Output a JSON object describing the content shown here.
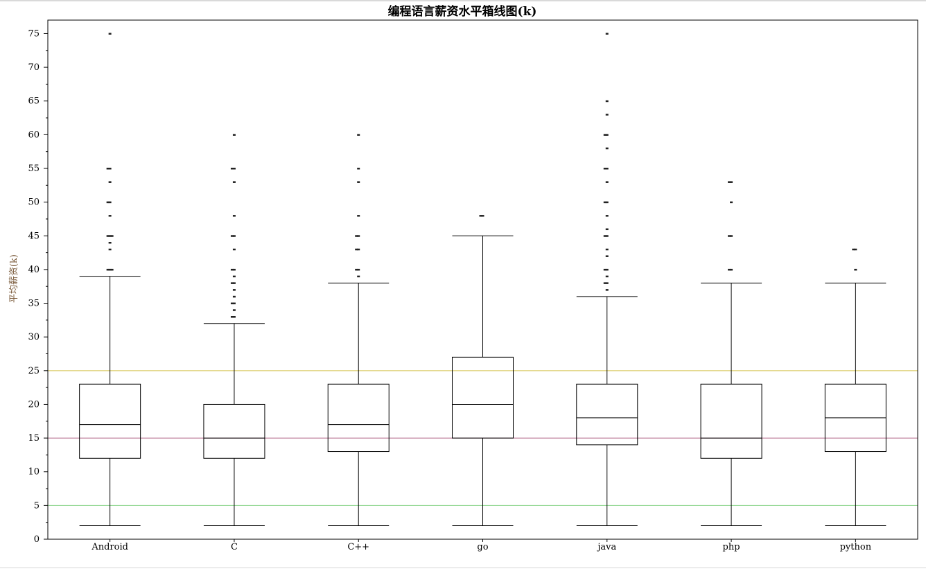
{
  "chart_data": {
    "type": "box",
    "title": "编程语言薪资水平箱线图(k)",
    "xlabel": "",
    "ylabel": "平均薪资(k)",
    "ylim": [
      0,
      77
    ],
    "yticks": [
      0,
      5,
      10,
      15,
      20,
      25,
      30,
      35,
      40,
      45,
      50,
      55,
      60,
      65,
      70,
      75
    ],
    "grid": false,
    "reference_lines": [
      {
        "y": 25,
        "color": "#d4c24a"
      },
      {
        "y": 15,
        "color": "#b36a8a"
      },
      {
        "y": 5,
        "color": "#7fd07f"
      }
    ],
    "categories": [
      "Android",
      "C",
      "C++",
      "go",
      "java",
      "php",
      "python"
    ],
    "boxes": [
      {
        "category": "Android",
        "whisker_low": 2,
        "q1": 12,
        "median": 17,
        "q3": 23,
        "whisker_high": 39,
        "outliers": [
          40,
          40,
          40,
          43,
          44,
          45,
          45,
          45,
          48,
          50,
          50,
          53,
          55,
          55,
          75
        ]
      },
      {
        "category": "C",
        "whisker_low": 2,
        "q1": 12,
        "median": 15,
        "q3": 20,
        "whisker_high": 32,
        "outliers": [
          33,
          33,
          34,
          35,
          35,
          36,
          37,
          38,
          38,
          39,
          40,
          40,
          43,
          45,
          45,
          48,
          53,
          55,
          55,
          60
        ]
      },
      {
        "category": "C++",
        "whisker_low": 2,
        "q1": 13,
        "median": 17,
        "q3": 23,
        "whisker_high": 38,
        "outliers": [
          39,
          40,
          40,
          43,
          43,
          45,
          45,
          48,
          53,
          55,
          60
        ]
      },
      {
        "category": "go",
        "whisker_low": 2,
        "q1": 15,
        "median": 20,
        "q3": 27,
        "whisker_high": 45,
        "outliers": [
          48,
          48
        ]
      },
      {
        "category": "java",
        "whisker_low": 2,
        "q1": 14,
        "median": 18,
        "q3": 23,
        "whisker_high": 36,
        "outliers": [
          37,
          38,
          38,
          39,
          40,
          40,
          42,
          43,
          45,
          45,
          46,
          48,
          50,
          50,
          53,
          55,
          55,
          58,
          60,
          60,
          63,
          65,
          75
        ]
      },
      {
        "category": "php",
        "whisker_low": 2,
        "q1": 12,
        "median": 15,
        "q3": 23,
        "whisker_high": 38,
        "outliers": [
          40,
          40,
          45,
          45,
          50,
          53,
          53
        ]
      },
      {
        "category": "python",
        "whisker_low": 2,
        "q1": 13,
        "median": 18,
        "q3": 23,
        "whisker_high": 38,
        "outliers": [
          40,
          43,
          43
        ]
      }
    ]
  }
}
